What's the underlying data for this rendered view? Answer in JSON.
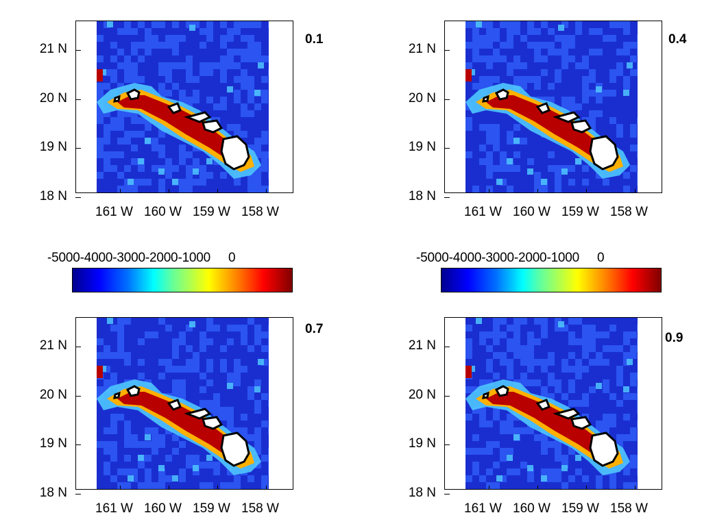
{
  "panels": [
    {
      "label": "0.1"
    },
    {
      "label": "0.4"
    },
    {
      "label": "0.7"
    },
    {
      "label": "0.9"
    }
  ],
  "axes": {
    "y_ticks": [
      "21 N",
      "20 N",
      "19 N",
      "18 N"
    ],
    "x_ticks": [
      "161 W",
      "160 W",
      "159 W",
      "158 W"
    ]
  },
  "colorbar": {
    "tick_labels": [
      "-5000",
      "-4000",
      "-3000",
      "-2000",
      "-1000",
      "0"
    ],
    "colormap": [
      "#00008f",
      "#0000ff",
      "#00ffff",
      "#ffff00",
      "#ff0000",
      "#800000"
    ]
  },
  "colors": {
    "ocean_deep": "#1a2ecf",
    "ocean_mid": "#2b54f0",
    "shelf": "#4fc6ff",
    "shallow": "#ffb000",
    "near_zero": "#b80000",
    "land": "#ffffff",
    "coast": "#000000"
  }
}
